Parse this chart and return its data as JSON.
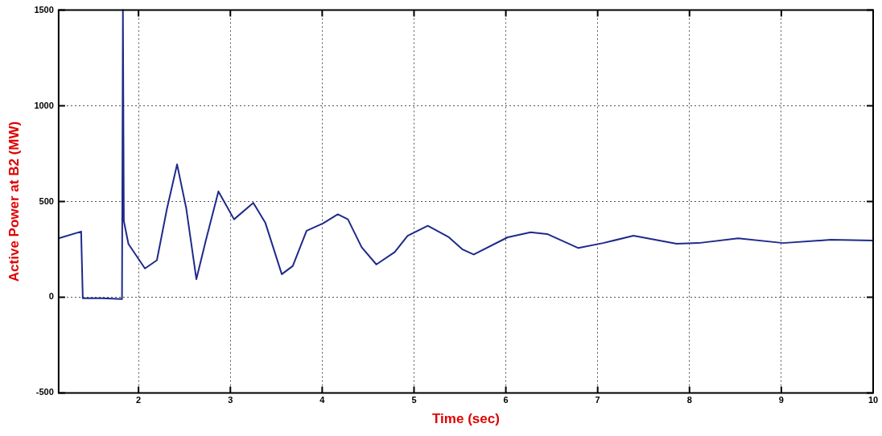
{
  "chart_data": {
    "type": "line",
    "xlabel": "Time (sec)",
    "ylabel": "Active Power at B2 (MW)",
    "xlim": [
      1.13,
      10
    ],
    "ylim": [
      -500,
      1500
    ],
    "xticks": [
      2,
      3,
      4,
      5,
      6,
      7,
      8,
      {
        "value": 9,
        "label": "9"
      },
      10
    ],
    "yticks": [
      -500,
      0,
      500,
      1000,
      1500
    ],
    "grid": true,
    "marker": "none",
    "line_style": "solid",
    "series": [
      {
        "color": "#1f2a8a",
        "x": [
          1.13,
          1.375,
          1.393,
          1.6,
          1.82,
          1.83,
          1.84,
          1.89,
          2.07,
          2.2,
          2.31,
          2.42,
          2.52,
          2.63,
          2.73,
          2.87,
          3.04,
          3.25,
          3.38,
          3.56,
          3.68,
          3.83,
          4.01,
          4.17,
          4.28,
          4.43,
          4.59,
          4.79,
          4.93,
          5.15,
          5.38,
          5.53,
          5.65,
          6.02,
          6.27,
          6.45,
          6.79,
          7.06,
          7.39,
          7.86,
          8.1,
          8.53,
          9.02,
          9.54,
          10
        ],
        "values": [
          308,
          343,
          -5,
          -5,
          -10,
          1500,
          398,
          278,
          150,
          193,
          463,
          694,
          463,
          94,
          291,
          553,
          407,
          493,
          390,
          120,
          163,
          347,
          386,
          433,
          407,
          261,
          171,
          236,
          321,
          373,
          313,
          249,
          223,
          313,
          339,
          330,
          257,
          283,
          321,
          279,
          283,
          308,
          283,
          300,
          296
        ]
      }
    ]
  }
}
